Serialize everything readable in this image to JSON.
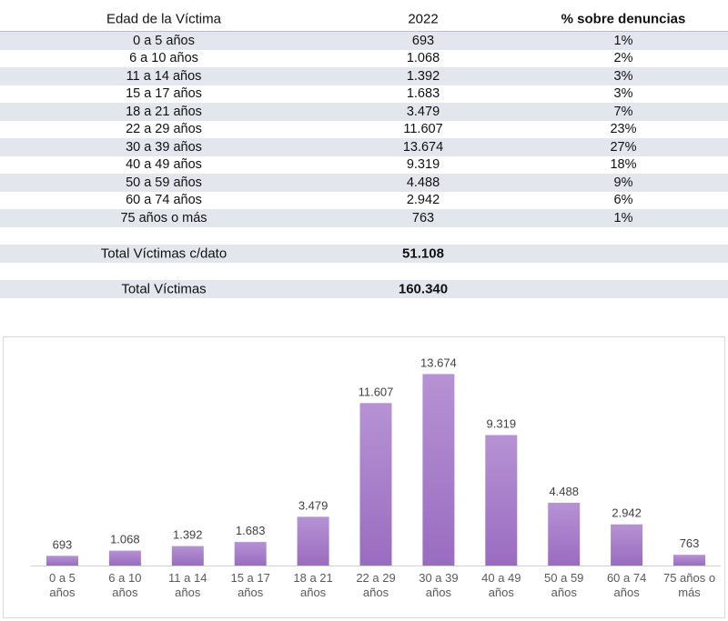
{
  "table": {
    "headers": [
      "Edad de la Víctima",
      "2022",
      "% sobre denuncias"
    ],
    "rows": [
      {
        "age": "0 a 5 años",
        "value": "693",
        "pct": "1%"
      },
      {
        "age": "6 a 10 años",
        "value": "1.068",
        "pct": "2%"
      },
      {
        "age": "11 a 14 años",
        "value": "1.392",
        "pct": "3%"
      },
      {
        "age": "15 a 17 años",
        "value": "1.683",
        "pct": "3%"
      },
      {
        "age": "18 a 21 años",
        "value": "3.479",
        "pct": "7%"
      },
      {
        "age": "22 a 29 años",
        "value": "11.607",
        "pct": "23%"
      },
      {
        "age": "30 a 39 años",
        "value": "13.674",
        "pct": "27%"
      },
      {
        "age": "40 a 49 años",
        "value": "9.319",
        "pct": "18%"
      },
      {
        "age": "50 a 59 años",
        "value": "4.488",
        "pct": "9%"
      },
      {
        "age": "60 a 74 años",
        "value": "2.942",
        "pct": "6%"
      },
      {
        "age": "75 años o más",
        "value": "763",
        "pct": "1%"
      }
    ],
    "total_con_dato_label": "Total Víctimas c/dato",
    "total_con_dato_value": "51.108",
    "total_label": "Total Víctimas",
    "total_value": "160.340"
  },
  "colors": {
    "bar_top": "#b692d4",
    "bar_bottom": "#9a6cc0",
    "band": "#e4e6ee"
  },
  "chart_data": {
    "type": "bar",
    "categories": [
      [
        "0 a 5",
        "años"
      ],
      [
        "6 a 10",
        "años"
      ],
      [
        "11 a 14",
        "años"
      ],
      [
        "15 a 17",
        "años"
      ],
      [
        "18 a 21",
        "años"
      ],
      [
        "22 a 29",
        "años"
      ],
      [
        "30 a 39",
        "años"
      ],
      [
        "40 a 49",
        "años"
      ],
      [
        "50 a 59",
        "años"
      ],
      [
        "60 a 74",
        "años"
      ],
      [
        "75 años o",
        "más"
      ]
    ],
    "values": [
      693,
      1068,
      1392,
      1683,
      3479,
      11607,
      13674,
      9319,
      4488,
      2942,
      763
    ],
    "data_labels": [
      "693",
      "1.068",
      "1.392",
      "1.683",
      "3.479",
      "11.607",
      "13.674",
      "9.319",
      "4.488",
      "2.942",
      "763"
    ],
    "ylim": [
      0,
      15000
    ],
    "grid": false,
    "legend": "none",
    "title": "",
    "xlabel": "",
    "ylabel": ""
  }
}
